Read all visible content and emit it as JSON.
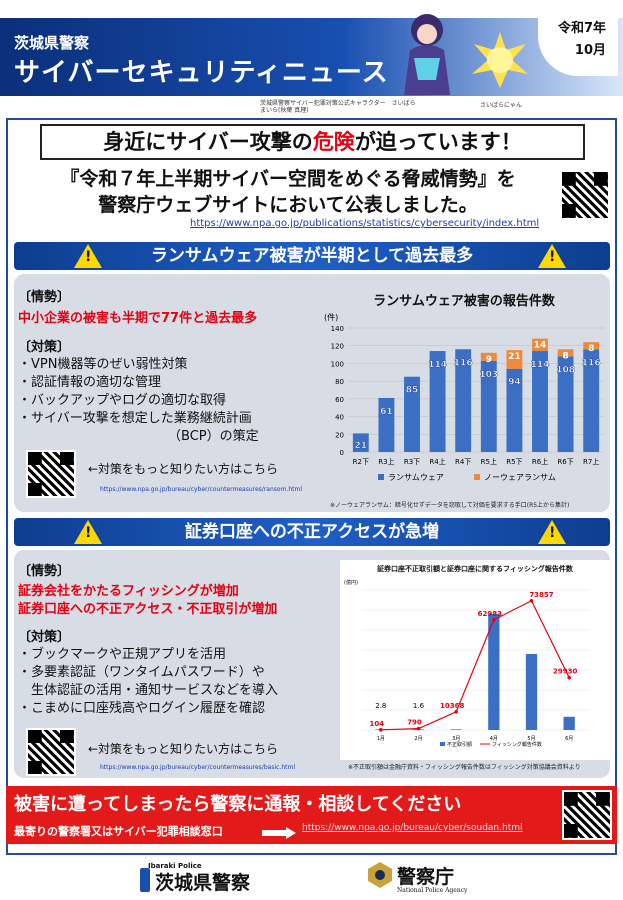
{
  "header": {
    "prefecture": "茨城県警察",
    "newsletter": "サイバーセキュリティニュース",
    "date_line1": "令和7年",
    "date_line2": "10月",
    "character1": "茨城県警察サイバー犯罪対策公式キャラクター　さいばら まいら(秋葉 真理)",
    "character2": "さいばらにゃん"
  },
  "headline": {
    "before": "身近にサイバー攻撃の",
    "danger": "危険",
    "after": "が迫っています！"
  },
  "announcement": {
    "line1": "『令和７年上半期サイバー空間をめぐる脅威情勢』を",
    "line2": "警察庁ウェブサイトにおいて公表しました。",
    "url": "https://www.npa.go.jp/publications/statistics/cybersecurity/index.html"
  },
  "section1": {
    "title": "ランサムウェア被害が半期として過去最多",
    "situation_label": "〔情勢〕",
    "situation": "中小企業の被害も半期で77件と過去最多",
    "measures_label": "〔対策〕",
    "measures": [
      "・VPN機器等のぜい弱性対策",
      "・認証情報の適切な管理",
      "・バックアップやログの適切な取得",
      "・サイバー攻撃を想定した業務継続計画",
      "（BCP）の策定"
    ],
    "more": "←対策をもっと知りたい方はこちら",
    "url": "https://www.npa.go.jp/bureau/cyber/countermeasures/ransom.html",
    "note": "※ノーウェアランサム：暗号化せずデータを窃取して対価を要求する手口(R5上から集計)"
  },
  "section2": {
    "title": "証券口座への不正アクセスが急増",
    "situation_label": "〔情勢〕",
    "situation1": "証券会社をかたるフィッシングが増加",
    "situation2": "証券口座への不正アクセス・不正取引が増加",
    "measures_label": "〔対策〕",
    "measures": [
      "・ブックマークや正規アプリを活用",
      "・多要素認証（ワンタイムパスワード）や",
      "　生体認証の活用・通知サービスなどを導入",
      "・こまめに口座残高やログイン履歴を確認"
    ],
    "more": "←対策をもっと知りたい方はこちら",
    "url": "https://www.npa.go.jp/bureau/cyber/countermeasures/basic.html",
    "note": "※不正取引額は金融庁資料・フィッシング報告件数はフィッシング対策協議会資料より"
  },
  "footer": {
    "title": "被害に遭ってしまったら警察に通報・相談してください",
    "sub": "最寄りの警察署又はサイバー犯罪相談窓口",
    "link": "https://www.npa.go.jp/bureau/cyber/soudan.html",
    "ibaraki_en": "Ibaraki Police",
    "ibaraki": "茨城県警察",
    "npa": "警察庁",
    "npa_en": "National Police Agency"
  },
  "colors": {
    "ransomware": "#3a6fc4",
    "noware": "#ef8a3a",
    "accent_red": "#e60012",
    "navy": "#0d3d8f"
  },
  "chart_data": [
    {
      "type": "bar",
      "title": "ランサムウェア被害の報告件数",
      "ylabel": "(件)",
      "categories": [
        "R2下",
        "R3上",
        "R3下",
        "R4上",
        "R4下",
        "R5上",
        "R5下",
        "R6上",
        "R6下",
        "R7上"
      ],
      "ylim": [
        0,
        140
      ],
      "yticks": [
        0,
        20,
        40,
        60,
        80,
        100,
        120,
        140
      ],
      "stacked": true,
      "series": [
        {
          "name": "ランサムウェア",
          "values": [
            21,
            61,
            85,
            114,
            116,
            103,
            94,
            114,
            108,
            116
          ]
        },
        {
          "name": "ノーウェアランサム",
          "values": [
            0,
            0,
            0,
            0,
            0,
            9,
            21,
            14,
            8,
            8
          ]
        }
      ],
      "legend": "bottom"
    },
    {
      "type": "bar+line",
      "title": "証券口座不正取引額と証券口座に関するフィッシング報告件数",
      "ylabel": "(億円)",
      "categories": [
        "1月",
        "2月",
        "3月",
        "4月",
        "5月",
        "6月"
      ],
      "series": [
        {
          "name": "不正取引額",
          "type": "bar",
          "values": [
            2.8,
            1.6,
            3,
            2900,
            1900,
            330
          ]
        },
        {
          "name": "フィッシング報告件数",
          "type": "line",
          "values": [
            104,
            790,
            10368,
            62983,
            73857,
            29930
          ]
        }
      ],
      "bar_labels": [
        "2.8",
        "1.6",
        "",
        "",
        "",
        ""
      ],
      "line_labels": [
        "104",
        "790",
        "10368",
        "62983",
        "73857",
        "29930"
      ]
    }
  ]
}
